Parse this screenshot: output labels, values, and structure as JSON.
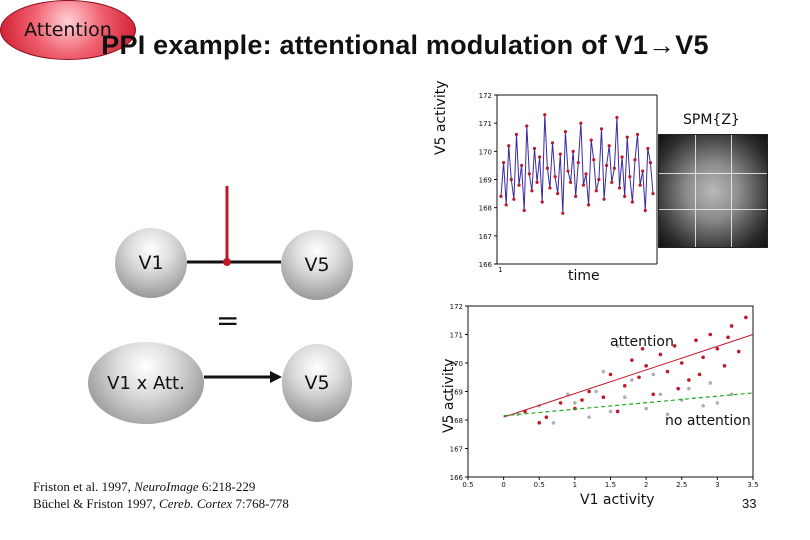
{
  "title": "PPI example: attentional modulation of V1→V5",
  "nodes": {
    "attention": "Attention",
    "v1": "V1",
    "v5_top": "V5",
    "v1_att": "V1 x Att.",
    "v5_bottom": "V5"
  },
  "equals": "=",
  "citations": {
    "line1_authors": "Friston et al. 1997, ",
    "line1_journal": "NeuroImage",
    "line1_ref": " 6:218-229",
    "line2_authors": "Büchel & Friston 1997, ",
    "line2_journal": "Cereb. Cortex",
    "line2_ref": " 7:768-778"
  },
  "page_number": "33",
  "spm_label": "SPM{Z}",
  "colors": {
    "attention_red": "#d4283a",
    "timeseries_blue": "#3a2aa0",
    "point_red": "#c0182a",
    "fit_green": "#22aa22",
    "point_grey": "#b0b0b0"
  },
  "chart_data": [
    {
      "type": "line",
      "title": "",
      "xlabel": "time",
      "ylabel": "V5 activity",
      "yticks": [
        "172",
        "171",
        "170",
        "169",
        "168",
        "167",
        "166"
      ],
      "ylim": [
        166,
        172
      ],
      "xticks": [
        "1"
      ],
      "series": [
        {
          "name": "V5 time series",
          "values": [
            168.4,
            169.6,
            168.1,
            170.2,
            169.0,
            168.3,
            170.6,
            168.8,
            169.5,
            167.9,
            170.9,
            169.2,
            168.6,
            170.1,
            168.9,
            169.8,
            168.2,
            171.3,
            169.4,
            168.7,
            170.3,
            169.1,
            168.5,
            169.9,
            167.8,
            170.7,
            169.3,
            168.9,
            170.0,
            168.4,
            169.6,
            171.0,
            168.8,
            169.2,
            168.1,
            170.4,
            169.7,
            168.6,
            169.0,
            170.8,
            168.3,
            169.5,
            170.2,
            168.9,
            169.4,
            171.2,
            168.7,
            169.8,
            168.4,
            170.5,
            169.1,
            168.2,
            169.7,
            170.6,
            168.8,
            169.3,
            167.9,
            170.1,
            169.6,
            168.5
          ]
        }
      ]
    },
    {
      "type": "scatter",
      "title": "",
      "xlabel": "V1 activity",
      "ylabel": "V5 activity",
      "xticks": [
        "0.5",
        "0",
        "0.5",
        "1",
        "1.5",
        "2",
        "2.5",
        "3",
        "3.5"
      ],
      "yticks": [
        "172",
        "171",
        "170",
        "169",
        "168",
        "167",
        "166"
      ],
      "xlim": [
        -0.5,
        3.5
      ],
      "ylim": [
        166,
        172
      ],
      "series": [
        {
          "name": "attention",
          "fit": [
            [
              0.0,
              168.1
            ],
            [
              3.5,
              171.0
            ]
          ],
          "points": [
            [
              0.3,
              168.3
            ],
            [
              0.5,
              167.9
            ],
            [
              0.8,
              168.6
            ],
            [
              1.0,
              168.4
            ],
            [
              1.2,
              169.0
            ],
            [
              1.4,
              168.8
            ],
            [
              1.5,
              169.6
            ],
            [
              1.6,
              168.3
            ],
            [
              1.7,
              169.2
            ],
            [
              1.8,
              170.1
            ],
            [
              1.9,
              169.5
            ],
            [
              2.0,
              169.9
            ],
            [
              2.1,
              168.9
            ],
            [
              2.2,
              170.3
            ],
            [
              2.3,
              169.7
            ],
            [
              2.4,
              170.6
            ],
            [
              2.5,
              170.0
            ],
            [
              2.6,
              169.4
            ],
            [
              2.7,
              170.8
            ],
            [
              2.8,
              170.2
            ],
            [
              2.9,
              171.0
            ],
            [
              3.0,
              170.5
            ],
            [
              3.1,
              169.9
            ],
            [
              3.2,
              171.3
            ],
            [
              3.3,
              170.4
            ],
            [
              3.4,
              171.6
            ],
            [
              2.45,
              169.1
            ],
            [
              1.95,
              170.5
            ],
            [
              2.75,
              169.6
            ],
            [
              3.15,
              170.9
            ],
            [
              1.1,
              168.7
            ],
            [
              0.6,
              168.1
            ]
          ]
        },
        {
          "name": "no attention",
          "fit": [
            [
              0.0,
              168.15
            ],
            [
              3.5,
              168.95
            ]
          ],
          "points": [
            [
              0.2,
              168.2
            ],
            [
              0.5,
              168.5
            ],
            [
              0.7,
              167.9
            ],
            [
              1.0,
              168.6
            ],
            [
              1.2,
              168.1
            ],
            [
              1.3,
              169.0
            ],
            [
              1.5,
              168.3
            ],
            [
              1.7,
              168.8
            ],
            [
              1.8,
              169.4
            ],
            [
              2.0,
              168.4
            ],
            [
              2.2,
              168.9
            ],
            [
              2.3,
              168.2
            ],
            [
              2.5,
              168.7
            ],
            [
              2.6,
              169.1
            ],
            [
              2.8,
              168.5
            ],
            [
              2.9,
              169.3
            ],
            [
              3.0,
              168.6
            ],
            [
              3.2,
              168.9
            ],
            [
              1.6,
              170.6
            ],
            [
              1.4,
              169.7
            ],
            [
              0.9,
              168.9
            ],
            [
              2.1,
              169.6
            ]
          ]
        }
      ]
    }
  ]
}
